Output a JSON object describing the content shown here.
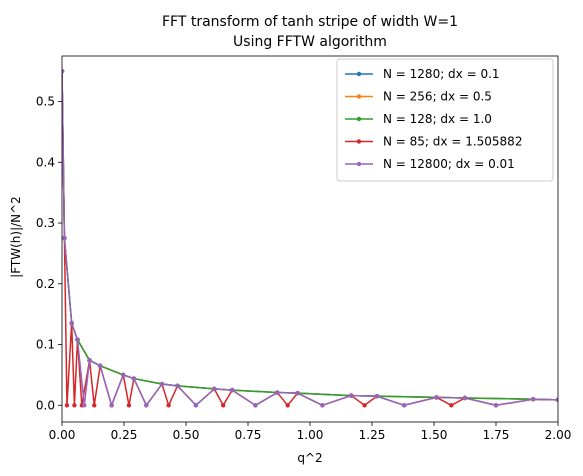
{
  "chart_data": {
    "type": "line",
    "title": "FFT transform of tanh stripe of width W=1",
    "subtitle": "Using FFTW algorithm",
    "xlabel": "q^2",
    "ylabel": "|FTW(h)|/N^2",
    "xlim": [
      0.0,
      2.0
    ],
    "ylim": [
      -0.0275,
      0.575
    ],
    "xticks": [
      0.0,
      0.25,
      0.5,
      0.75,
      1.0,
      1.25,
      1.5,
      1.75,
      2.0
    ],
    "xtick_labels": [
      "0.00",
      "0.25",
      "0.50",
      "0.75",
      "1.00",
      "1.25",
      "1.50",
      "1.75",
      "2.00"
    ],
    "yticks": [
      0.0,
      0.1,
      0.2,
      0.3,
      0.4,
      0.5
    ],
    "ytick_labels": [
      "0.0",
      "0.1",
      "0.2",
      "0.3",
      "0.4",
      "0.5"
    ],
    "grid": false,
    "legend_position": "top-right",
    "series": [
      {
        "name": "N = 1280; dx = 0.1",
        "color": "#1f77b4",
        "x": [
          0,
          0.0098,
          0.039,
          0.0625,
          0.111,
          0.154,
          0.247,
          0.29,
          0.403,
          0.466,
          0.614,
          0.686,
          0.868,
          0.95,
          1.166,
          1.27,
          1.51,
          1.625,
          1.9,
          2.0
        ],
        "y": [
          0.55,
          0.275,
          0.135,
          0.108,
          0.074,
          0.065,
          0.05,
          0.044,
          0.035,
          0.032,
          0.027,
          0.025,
          0.021,
          0.02,
          0.016,
          0.015,
          0.013,
          0.012,
          0.01,
          0.009
        ]
      },
      {
        "name": "N = 256; dx = 0.5",
        "color": "#ff7f0e",
        "x": [
          0,
          0.0098,
          0.039,
          0.0625,
          0.111,
          0.154,
          0.247,
          0.29,
          0.403,
          0.466,
          0.614,
          0.686,
          0.868,
          0.95,
          1.166,
          1.27,
          1.51,
          1.625,
          1.9,
          2.0
        ],
        "y": [
          0.55,
          0.275,
          0.135,
          0.108,
          0.074,
          0.065,
          0.05,
          0.044,
          0.035,
          0.032,
          0.027,
          0.025,
          0.021,
          0.02,
          0.016,
          0.015,
          0.013,
          0.012,
          0.01,
          0.009
        ]
      },
      {
        "name": "N = 128; dx = 1.0",
        "color": "#2ca02c",
        "x": [
          0,
          0.0098,
          0.039,
          0.0625,
          0.111,
          0.154,
          0.247,
          0.29,
          0.403,
          0.466,
          0.614,
          0.686,
          0.868,
          0.95,
          1.166,
          1.27,
          1.51,
          1.625,
          1.9,
          2.0
        ],
        "y": [
          0.55,
          0.275,
          0.135,
          0.108,
          0.074,
          0.065,
          0.05,
          0.044,
          0.035,
          0.032,
          0.027,
          0.025,
          0.021,
          0.02,
          0.016,
          0.015,
          0.013,
          0.012,
          0.01,
          0.009
        ]
      },
      {
        "name": "N = 85; dx = 1.505882",
        "color": "#d62728",
        "x": [
          0,
          0.0098,
          0.02,
          0.039,
          0.05,
          0.0625,
          0.08,
          0.111,
          0.13,
          0.154,
          0.2,
          0.247,
          0.27,
          0.29,
          0.34,
          0.403,
          0.43,
          0.466,
          0.54,
          0.614,
          0.65,
          0.686,
          0.78,
          0.868,
          0.91,
          0.95,
          1.05,
          1.166,
          1.22,
          1.27,
          1.38,
          1.51,
          1.57,
          1.625,
          1.75,
          1.9,
          2.0
        ],
        "y": [
          0.55,
          0.275,
          0.0,
          0.135,
          0.0,
          0.108,
          0.0,
          0.074,
          0.0,
          0.065,
          0.0,
          0.05,
          0.0,
          0.044,
          0.0,
          0.035,
          0.0,
          0.032,
          0.0,
          0.027,
          0.0,
          0.025,
          0.0,
          0.021,
          0.0,
          0.02,
          0.0,
          0.016,
          0.0,
          0.015,
          0.0,
          0.013,
          0.0,
          0.012,
          0.0,
          0.01,
          0.009
        ]
      },
      {
        "name": "N = 12800; dx = 0.01",
        "color": "#9467bd",
        "x": [
          0,
          0.0098,
          0.039,
          0.0625,
          0.09,
          0.111,
          0.154,
          0.2,
          0.247,
          0.29,
          0.34,
          0.403,
          0.466,
          0.54,
          0.614,
          0.686,
          0.78,
          0.868,
          0.95,
          1.05,
          1.166,
          1.27,
          1.38,
          1.51,
          1.625,
          1.75,
          1.9,
          2.0
        ],
        "y": [
          0.55,
          0.275,
          0.135,
          0.108,
          0.0,
          0.074,
          0.065,
          0.0,
          0.05,
          0.044,
          0.0,
          0.035,
          0.032,
          0.0,
          0.027,
          0.025,
          0.0,
          0.021,
          0.02,
          0.0,
          0.016,
          0.015,
          0.0,
          0.013,
          0.012,
          0.0,
          0.01,
          0.009
        ]
      }
    ]
  }
}
